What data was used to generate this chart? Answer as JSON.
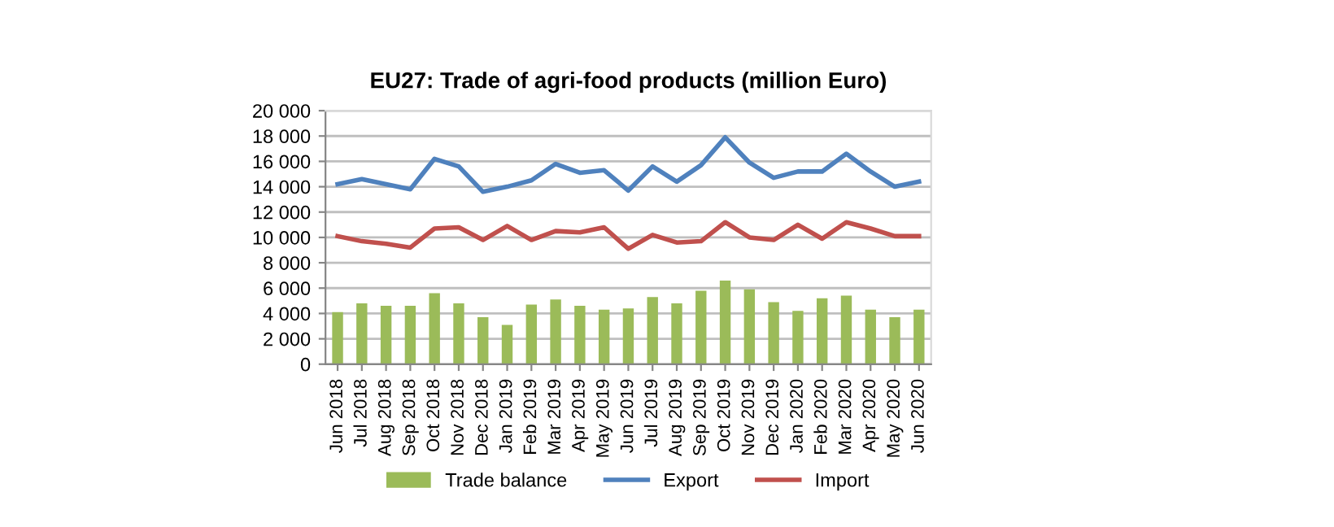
{
  "chart_data": {
    "type": "bar",
    "title": "EU27: Trade of agri-food products (million Euro)",
    "categories": [
      "Jun 2018",
      "Jul 2018",
      "Aug 2018",
      "Sep 2018",
      "Oct 2018",
      "Nov 2018",
      "Dec 2018",
      "Jan 2019",
      "Feb 2019",
      "Mar 2019",
      "Apr 2019",
      "May 2019",
      "Jun 2019",
      "Jul 2019",
      "Aug 2019",
      "Sep 2019",
      "Oct 2019",
      "Nov 2019",
      "Dec 2019",
      "Jan 2020",
      "Feb 2020",
      "Mar 2020",
      "Apr 2020",
      "May 2020",
      "Jun 2020"
    ],
    "series": [
      {
        "name": "Trade balance",
        "color": "#9bbb59",
        "values": [
          4100,
          4800,
          4600,
          4600,
          5600,
          4800,
          3700,
          3100,
          4700,
          5100,
          4600,
          4300,
          4400,
          5300,
          4800,
          5800,
          6600,
          5900,
          4900,
          4200,
          5200,
          5400,
          4300,
          3700,
          4300
        ]
      },
      {
        "name": "Export",
        "type": "line",
        "color": "#4f81bd",
        "values": [
          14200,
          14600,
          14200,
          13800,
          16200,
          15600,
          13600,
          14000,
          14500,
          15800,
          15100,
          15300,
          13700,
          15600,
          14400,
          15700,
          17900,
          15900,
          14700,
          15200,
          15200,
          16600,
          15200,
          14000,
          14400
        ]
      },
      {
        "name": "Import",
        "type": "line",
        "color": "#c0504d",
        "values": [
          10100,
          9700,
          9500,
          9200,
          10700,
          10800,
          9800,
          10900,
          9800,
          10500,
          10400,
          10800,
          9100,
          10200,
          9600,
          9700,
          11200,
          10000,
          9800,
          11000,
          9900,
          11200,
          10700,
          10100,
          10100
        ]
      }
    ],
    "ylim": [
      0,
      20000
    ],
    "yticks": [
      {
        "value": 0,
        "label": "0"
      },
      {
        "value": 2000,
        "label": "2 000"
      },
      {
        "value": 4000,
        "label": "4 000"
      },
      {
        "value": 6000,
        "label": "6 000"
      },
      {
        "value": 8000,
        "label": "8 000"
      },
      {
        "value": 10000,
        "label": "10 000"
      },
      {
        "value": 12000,
        "label": "12 000"
      },
      {
        "value": 14000,
        "label": "14 000"
      },
      {
        "value": 16000,
        "label": "16 000"
      },
      {
        "value": 18000,
        "label": "18 000"
      },
      {
        "value": 20000,
        "label": "20 000"
      }
    ],
    "grid": "y",
    "legend": "bottom",
    "marker": "none",
    "line_style": "solid"
  }
}
